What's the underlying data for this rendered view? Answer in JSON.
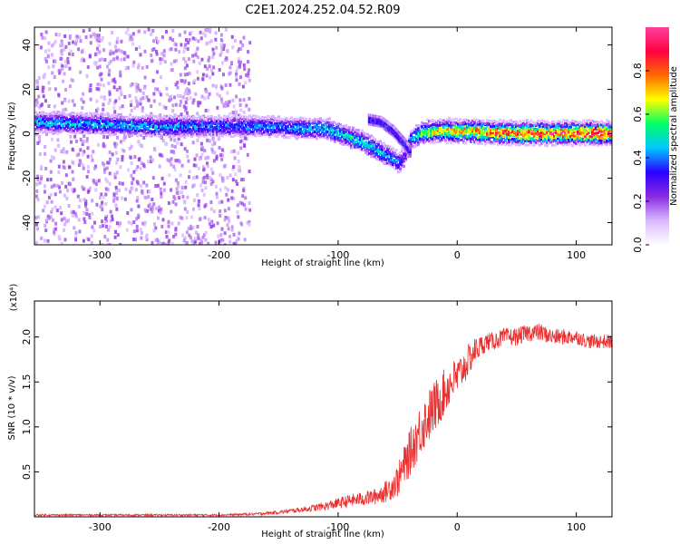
{
  "title": "C2E1.2024.252.04.52.R09",
  "colors": {
    "line": "#e83030",
    "background": "#ffffff",
    "axis": "#000000",
    "colormap": [
      "#ffffff",
      "#d9b8ff",
      "#8a2be2",
      "#2a00ff",
      "#00c8ff",
      "#00ff66",
      "#ffff00",
      "#ff6a00",
      "#ff0040",
      "#ff40a0"
    ]
  },
  "chart_data": [
    {
      "type": "heatmap",
      "xlabel": "Height of straight line (km)",
      "ylabel": "Frequency (Hz)",
      "xlim": [
        -355,
        130
      ],
      "ylim": [
        -50,
        48
      ],
      "xticks": [
        -300,
        -200,
        -100,
        0,
        100
      ],
      "yticks": [
        -40,
        -20,
        0,
        20,
        40
      ],
      "grid": false,
      "colorbar": {
        "label": "Normalized spectral amplitude",
        "range": [
          0,
          1
        ],
        "ticks": [
          "0.0",
          "0.2",
          "0.4",
          "0.6",
          "0.8"
        ],
        "tick_values": [
          0.0,
          0.2,
          0.4,
          0.6,
          0.8
        ]
      },
      "ridge": {
        "x": [
          -350,
          -300,
          -250,
          -200,
          -160,
          -130,
          -110,
          -95,
          -80,
          -70,
          -60,
          -50,
          -45,
          -40,
          -35,
          -30,
          -20,
          0,
          50,
          100,
          125
        ],
        "y": [
          6,
          5,
          4,
          4,
          4,
          3,
          3,
          0,
          -3,
          -6,
          -9,
          -12,
          -10,
          -2,
          0,
          1,
          2,
          2,
          1,
          1,
          1
        ],
        "amp": [
          0.45,
          0.45,
          0.45,
          0.4,
          0.4,
          0.45,
          0.5,
          0.5,
          0.5,
          0.5,
          0.45,
          0.4,
          0.3,
          0.4,
          0.5,
          0.6,
          0.7,
          0.75,
          0.85,
          0.9,
          0.9
        ]
      },
      "secondary_branch": {
        "x": [
          -75,
          -65,
          -55,
          -45,
          -40
        ],
        "y": [
          7,
          6,
          2,
          -4,
          -8
        ]
      },
      "scatter_region": {
        "x_range": [
          -355,
          -175
        ],
        "y_range": [
          -50,
          48
        ],
        "amplitude": 0.15
      }
    },
    {
      "type": "line",
      "xlabel": "Height of straight line (km)",
      "ylabel": "SNR (10 * v/v)",
      "y_multiplier": "(x10⁴)",
      "xlim": [
        -355,
        130
      ],
      "ylim": [
        0,
        2.4
      ],
      "xticks": [
        -300,
        -200,
        -100,
        0,
        100
      ],
      "yticks": [
        0.5,
        1.0,
        1.5,
        2.0
      ],
      "grid": false,
      "series": [
        {
          "x": [
            -355,
            -300,
            -250,
            -200,
            -170,
            -150,
            -130,
            -110,
            -100,
            -90,
            -80,
            -70,
            -60,
            -50,
            -45,
            -40,
            -35,
            -30,
            -25,
            -20,
            -15,
            -10,
            -5,
            0,
            5,
            10,
            15,
            20,
            25,
            30,
            40,
            50,
            60,
            70,
            80,
            90,
            100,
            110,
            120,
            130
          ],
          "y": [
            0.02,
            0.02,
            0.02,
            0.02,
            0.03,
            0.05,
            0.08,
            0.12,
            0.15,
            0.18,
            0.2,
            0.22,
            0.28,
            0.4,
            0.55,
            0.7,
            0.85,
            1.0,
            1.1,
            1.2,
            1.3,
            1.4,
            1.5,
            1.55,
            1.65,
            1.75,
            1.85,
            1.9,
            1.95,
            1.95,
            2.0,
            2.0,
            2.05,
            2.05,
            2.0,
            2.0,
            2.0,
            1.95,
            1.95,
            1.95
          ],
          "noise": [
            0.01,
            0.01,
            0.01,
            0.01,
            0.015,
            0.02,
            0.03,
            0.05,
            0.06,
            0.07,
            0.08,
            0.09,
            0.12,
            0.18,
            0.22,
            0.26,
            0.28,
            0.3,
            0.3,
            0.3,
            0.28,
            0.26,
            0.24,
            0.22,
            0.2,
            0.18,
            0.15,
            0.12,
            0.1,
            0.1,
            0.1,
            0.1,
            0.1,
            0.1,
            0.09,
            0.09,
            0.08,
            0.08,
            0.08,
            0.08
          ]
        }
      ]
    }
  ]
}
